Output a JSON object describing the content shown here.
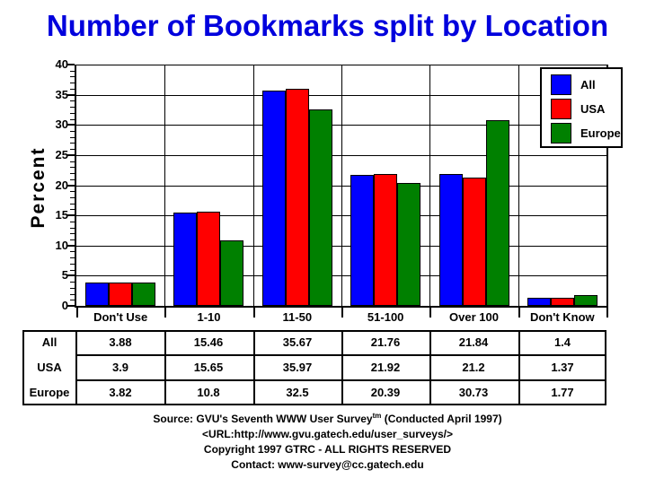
{
  "title": "Number of Bookmarks split by Location",
  "colors": {
    "title": "#0000DD",
    "bar_all": "#0000FF",
    "bar_usa": "#FF0000",
    "bar_europe": "#008000",
    "axis": "#000000",
    "background": "#FFFFFF"
  },
  "chart_data": {
    "type": "bar",
    "title": "Number of Bookmarks split by Location",
    "categories": [
      "Don't Use",
      "1-10",
      "11-50",
      "51-100",
      "Over 100",
      "Don't Know"
    ],
    "series": [
      {
        "name": "All",
        "color": "#0000FF",
        "values": [
          3.88,
          15.46,
          35.67,
          21.76,
          21.84,
          1.4
        ]
      },
      {
        "name": "USA",
        "color": "#FF0000",
        "values": [
          3.9,
          15.65,
          35.97,
          21.92,
          21.2,
          1.37
        ]
      },
      {
        "name": "Europe",
        "color": "#008000",
        "values": [
          3.82,
          10.8,
          32.5,
          20.39,
          30.73,
          1.77
        ]
      }
    ],
    "xlabel": "",
    "ylabel": "Percent",
    "ylim": [
      0,
      40
    ],
    "ytick_step": 5,
    "minor_tick_step": 1,
    "grid": true,
    "legend_position": "top-right"
  },
  "table": {
    "row_labels": [
      "All",
      "USA",
      "Europe"
    ],
    "column_headers": [
      "Don't Use",
      "1-10",
      "11-50",
      "51-100",
      "Over 100",
      "Don't Know"
    ],
    "rows": [
      [
        "3.88",
        "15.46",
        "35.67",
        "21.76",
        "21.84",
        "1.4"
      ],
      [
        "3.9",
        "15.65",
        "35.97",
        "21.92",
        "21.2",
        "1.37"
      ],
      [
        "3.82",
        "10.8",
        "32.5",
        "20.39",
        "30.73",
        "1.77"
      ]
    ]
  },
  "footer": {
    "line1_prefix": "Source: GVU's Seventh WWW User Survey",
    "line1_sup": "tm",
    "line1_suffix": " (Conducted April 1997)",
    "line2": "<URL:http://www.gvu.gatech.edu/user_surveys/>",
    "line3": "Copyright 1997 GTRC - ALL RIGHTS RESERVED",
    "line4": "Contact: www-survey@cc.gatech.edu"
  }
}
